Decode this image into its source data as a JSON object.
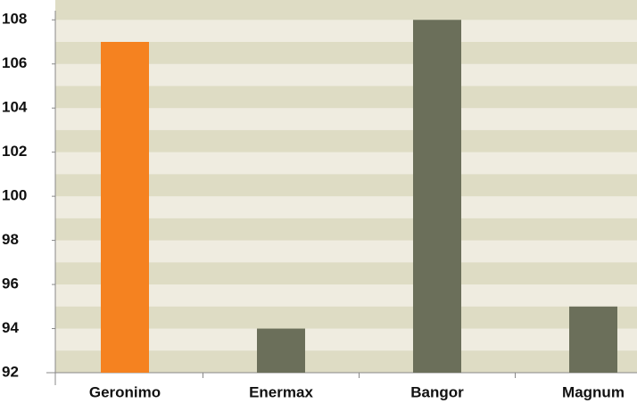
{
  "chart_data": {
    "type": "bar",
    "categories": [
      "Geronimo",
      "Enermax",
      "Bangor",
      "Magnum"
    ],
    "values": [
      107,
      94,
      108,
      95
    ],
    "colors": [
      "#f58220",
      "#6b6f5a",
      "#6b6f5a",
      "#6b6f5a"
    ],
    "ylim": [
      92,
      108.9
    ],
    "yticks": [
      92,
      94,
      96,
      98,
      100,
      102,
      104,
      106,
      108
    ],
    "grid": true
  }
}
